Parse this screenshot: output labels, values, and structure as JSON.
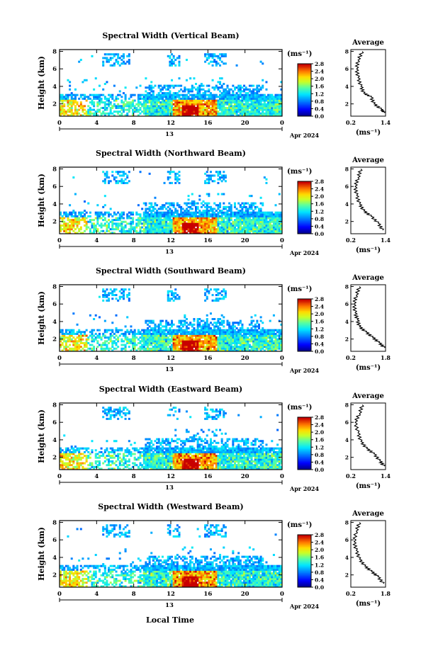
{
  "figure": {
    "xlabel": "Local Time",
    "date_label": "Apr 2024",
    "day_label": "13",
    "cbar_unit": "(ms⁻¹)",
    "avg_title": "Average",
    "avg_xlabel": "(ms⁻¹)"
  },
  "chart_data": [
    {
      "type": "heatmap",
      "title": "Spectral Width (Vertical Beam)",
      "ylabel": "Height (km)",
      "x_ticks": [
        "0",
        "4",
        "8",
        "12",
        "16",
        "20",
        "0"
      ],
      "y_ticks": [
        "2",
        "4",
        "6",
        "8"
      ],
      "xlim": [
        0,
        24
      ],
      "ylim": [
        0.6,
        8.2
      ],
      "colorbar": {
        "ticks": [
          "0.0",
          "0.4",
          "0.8",
          "1.2",
          "1.6",
          "2.0",
          "2.4",
          "2.8"
        ],
        "range": [
          0.0,
          2.8
        ]
      },
      "average": {
        "xlim": [
          0.2,
          1.4
        ],
        "x_ticks": [
          "0.2",
          "1.4"
        ],
        "y_ticks": [
          "2",
          "4",
          "6",
          "8"
        ],
        "profile": [
          [
            1.35,
            1.0
          ],
          [
            1.25,
            1.4
          ],
          [
            1.0,
            2.0
          ],
          [
            0.9,
            2.8
          ],
          [
            0.65,
            3.2
          ],
          [
            0.55,
            4.0
          ],
          [
            0.45,
            5.0
          ],
          [
            0.4,
            6.0
          ],
          [
            0.45,
            7.0
          ],
          [
            0.6,
            8.0
          ]
        ]
      }
    },
    {
      "type": "heatmap",
      "title": "Spectral Width (Northward Beam)",
      "ylabel": "Height (km)",
      "x_ticks": [
        "0",
        "4",
        "8",
        "12",
        "16",
        "20",
        "0"
      ],
      "y_ticks": [
        "2",
        "4",
        "6",
        "8"
      ],
      "xlim": [
        0,
        24
      ],
      "ylim": [
        0.6,
        8.2
      ],
      "colorbar": {
        "ticks": [
          "0.0",
          "0.4",
          "0.8",
          "1.2",
          "1.6",
          "2.0",
          "2.4",
          "2.8"
        ],
        "range": [
          0.0,
          2.8
        ]
      },
      "average": {
        "xlim": [
          0.2,
          1.4
        ],
        "x_ticks": [
          "0.2",
          "1.4"
        ],
        "y_ticks": [
          "2",
          "4",
          "6",
          "8"
        ],
        "profile": [
          [
            1.3,
            1.0
          ],
          [
            1.15,
            1.8
          ],
          [
            0.9,
            2.6
          ],
          [
            0.65,
            3.2
          ],
          [
            0.5,
            4.0
          ],
          [
            0.4,
            5.0
          ],
          [
            0.35,
            6.0
          ],
          [
            0.45,
            7.0
          ],
          [
            0.55,
            8.0
          ]
        ]
      }
    },
    {
      "type": "heatmap",
      "title": "Spectral Width (Southward Beam)",
      "ylabel": "Height (km)",
      "x_ticks": [
        "0",
        "4",
        "8",
        "12",
        "16",
        "20",
        "0"
      ],
      "y_ticks": [
        "2",
        "4",
        "6",
        "8"
      ],
      "xlim": [
        0,
        24
      ],
      "ylim": [
        0.6,
        8.2
      ],
      "colorbar": {
        "ticks": [
          "0.0",
          "0.4",
          "0.8",
          "1.2",
          "1.6",
          "2.0",
          "2.4",
          "2.8"
        ],
        "range": [
          0.0,
          2.8
        ]
      },
      "average": {
        "xlim": [
          0.2,
          1.8
        ],
        "x_ticks": [
          "0.2",
          "1.8"
        ],
        "y_ticks": [
          "2",
          "4",
          "6",
          "8"
        ],
        "profile": [
          [
            1.75,
            1.0
          ],
          [
            1.5,
            1.6
          ],
          [
            1.2,
            2.2
          ],
          [
            0.9,
            2.8
          ],
          [
            0.6,
            3.4
          ],
          [
            0.5,
            4.2
          ],
          [
            0.4,
            5.0
          ],
          [
            0.35,
            6.0
          ],
          [
            0.45,
            7.0
          ],
          [
            0.6,
            8.0
          ]
        ]
      }
    },
    {
      "type": "heatmap",
      "title": "Spectral Width (Eastward Beam)",
      "ylabel": "Height (km)",
      "x_ticks": [
        "0",
        "4",
        "8",
        "12",
        "16",
        "20",
        "0"
      ],
      "y_ticks": [
        "2",
        "4",
        "6",
        "8"
      ],
      "xlim": [
        0,
        24
      ],
      "ylim": [
        0.6,
        8.2
      ],
      "colorbar": {
        "ticks": [
          "0.0",
          "0.4",
          "0.8",
          "1.2",
          "1.6",
          "2.0",
          "2.4",
          "2.8"
        ],
        "range": [
          0.0,
          2.8
        ]
      },
      "average": {
        "xlim": [
          0.2,
          1.4
        ],
        "x_ticks": [
          "0.2",
          "1.4"
        ],
        "y_ticks": [
          "2",
          "4",
          "6",
          "8"
        ],
        "profile": [
          [
            1.35,
            1.0
          ],
          [
            1.2,
            1.6
          ],
          [
            1.0,
            2.4
          ],
          [
            0.75,
            3.0
          ],
          [
            0.55,
            3.8
          ],
          [
            0.45,
            4.8
          ],
          [
            0.35,
            6.0
          ],
          [
            0.5,
            7.0
          ],
          [
            0.6,
            8.0
          ]
        ]
      }
    },
    {
      "type": "heatmap",
      "title": "Spectral Width (Westward Beam)",
      "ylabel": "Height (km)",
      "x_ticks": [
        "0",
        "4",
        "8",
        "12",
        "16",
        "20",
        "0"
      ],
      "y_ticks": [
        "2",
        "4",
        "6",
        "8"
      ],
      "xlim": [
        0,
        24
      ],
      "ylim": [
        0.6,
        8.2
      ],
      "colorbar": {
        "ticks": [
          "0.0",
          "0.4",
          "0.8",
          "1.2",
          "1.6",
          "2.0",
          "2.4",
          "2.8"
        ],
        "range": [
          0.0,
          2.8
        ]
      },
      "average": {
        "xlim": [
          0.2,
          1.8
        ],
        "x_ticks": [
          "0.2",
          "1.8"
        ],
        "y_ticks": [
          "2",
          "4",
          "6",
          "8"
        ],
        "profile": [
          [
            1.7,
            1.0
          ],
          [
            1.45,
            1.8
          ],
          [
            1.15,
            2.4
          ],
          [
            0.85,
            3.0
          ],
          [
            0.6,
            3.8
          ],
          [
            0.45,
            4.8
          ],
          [
            0.35,
            5.8
          ],
          [
            0.45,
            7.0
          ],
          [
            0.6,
            8.0
          ]
        ]
      }
    }
  ]
}
